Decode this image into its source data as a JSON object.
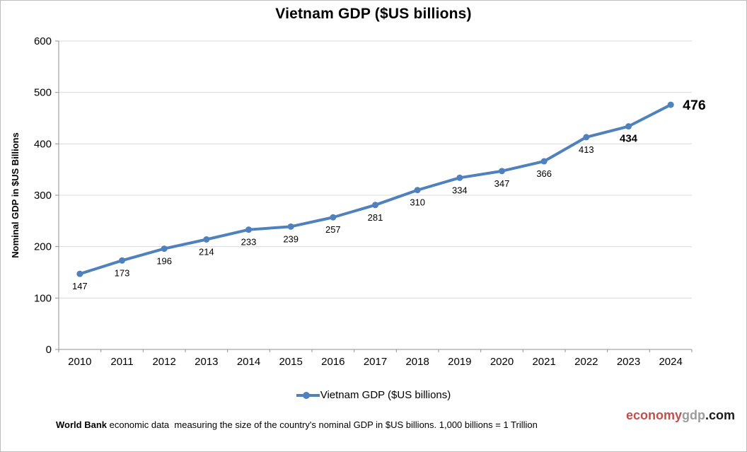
{
  "title": "Vietnam GDP ($US billions)",
  "chart_data": {
    "type": "line",
    "title": "Vietnam GDP ($US billions)",
    "categories": [
      "2010",
      "2011",
      "2012",
      "2013",
      "2014",
      "2015",
      "2016",
      "2017",
      "2018",
      "2019",
      "2020",
      "2021",
      "2022",
      "2023",
      "2024"
    ],
    "series": [
      {
        "name": "Vietnam GDP ($US billions)",
        "values": [
          147,
          173,
          196,
          214,
          233,
          239,
          257,
          281,
          310,
          334,
          347,
          366,
          413,
          434,
          476
        ]
      }
    ],
    "xlabel": "",
    "ylabel": "Nominal GDP in $US Billions",
    "ylim": [
      0,
      600
    ],
    "ytick_step": 100,
    "grid": true,
    "legend_position": "bottom",
    "data_labels": true,
    "bold_label_categories": [
      "2023",
      "2024"
    ],
    "callout_label_category": "2024",
    "line_color": "#4F81BD",
    "marker_color": "#4F81BD",
    "grid_color": "#D9D9D9",
    "axis_color": "#919191",
    "tick_label_color": "#000000"
  },
  "legend": {
    "label": "Vietnam GDP ($US billions)"
  },
  "footer": {
    "bold_text": "World Bank",
    "text": " economic data  measuring the size of the country's nominal GDP in $US billions. 1,000 billions = 1 Trillion"
  },
  "watermark": {
    "part1": "economy",
    "part2": "gdp",
    "part3": ".com",
    "color1": "#C0504D",
    "color2": "#9B9B9B",
    "color3": "#1A1A1A"
  }
}
